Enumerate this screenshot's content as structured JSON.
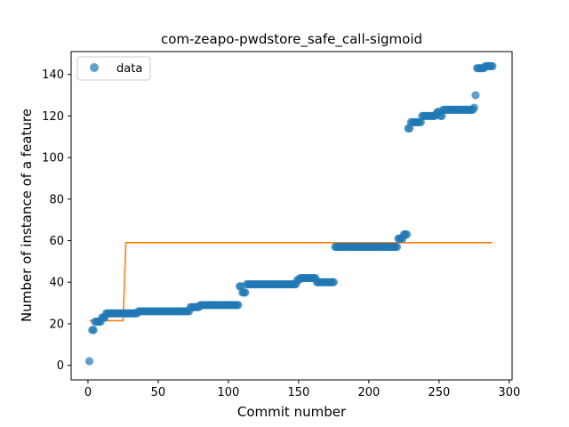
{
  "chart_data": {
    "type": "scatter",
    "title": "com-zeapo-pwdstore_safe_call-sigmoid",
    "xlabel": "Commit number",
    "ylabel": "Number of instance of a feature",
    "xlim": [
      -12,
      302
    ],
    "ylim": [
      -7,
      151
    ],
    "xticks": [
      0,
      50,
      100,
      150,
      200,
      250,
      300
    ],
    "yticks": [
      0,
      20,
      40,
      60,
      80,
      100,
      120,
      140
    ],
    "grid": false,
    "legend": {
      "placement": "top-left",
      "entries": [
        "data"
      ]
    },
    "colors": {
      "data": "#1f77b4",
      "fit": "#ff7f0e"
    },
    "series": [
      {
        "name": "data",
        "kind": "scatter",
        "segments": [
          [
            1,
            1,
            2
          ],
          [
            3,
            4,
            17
          ],
          [
            5,
            9,
            21
          ],
          [
            10,
            12,
            23
          ],
          [
            13,
            35,
            25
          ],
          [
            36,
            72,
            26
          ],
          [
            73,
            79,
            28
          ],
          [
            80,
            107,
            29
          ],
          [
            108,
            109,
            38
          ],
          [
            110,
            112,
            35
          ],
          [
            113,
            148,
            39
          ],
          [
            149,
            150,
            41
          ],
          [
            151,
            162,
            42
          ],
          [
            163,
            175,
            40
          ],
          [
            176,
            220,
            57
          ],
          [
            221,
            224,
            61
          ],
          [
            225,
            227,
            63
          ],
          [
            228,
            229,
            114
          ],
          [
            230,
            237,
            117
          ],
          [
            238,
            247,
            120
          ],
          [
            248,
            248,
            121
          ],
          [
            249,
            250,
            122
          ],
          [
            251,
            252,
            120
          ],
          [
            253,
            274,
            123
          ],
          [
            275,
            275,
            124
          ],
          [
            276,
            276,
            130
          ],
          [
            277,
            282,
            143
          ],
          [
            283,
            288,
            144
          ]
        ]
      },
      {
        "kind": "line",
        "x": [
          1,
          25,
          26,
          27,
          288
        ],
        "y": [
          21.5,
          21.5,
          40,
          59,
          59
        ]
      }
    ]
  }
}
